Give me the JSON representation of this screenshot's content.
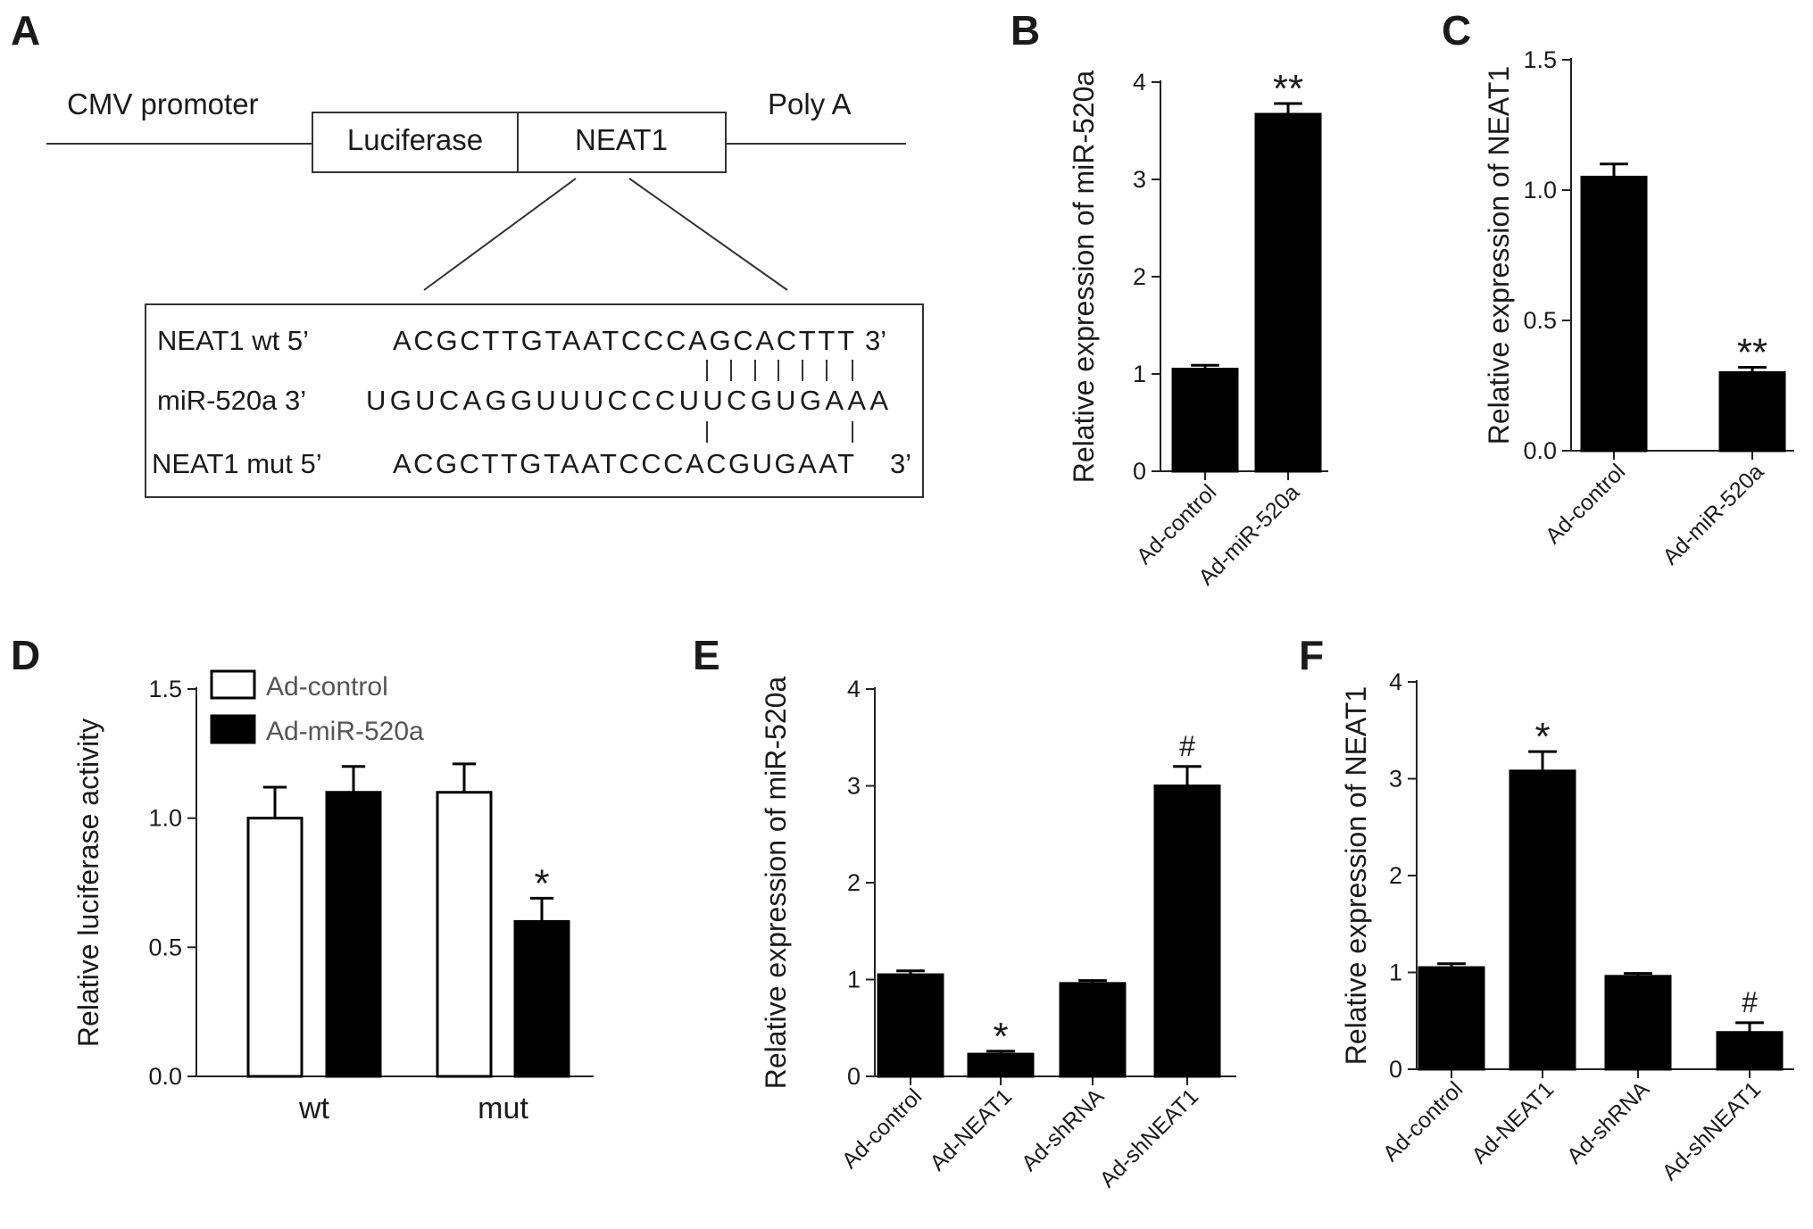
{
  "diagram": {
    "panel_label": "A",
    "cmv_promoter": "CMV promoter",
    "poly_a": "Poly A",
    "box_luciferase": "Luciferase",
    "box_neat1": "NEAT1",
    "seq_rows": [
      {
        "label": "NEAT1  wt  5’",
        "seq": "ACGCTTGTAATCCCAGCACTTT",
        "end": "3’"
      },
      {
        "label": "miR-520a 3’",
        "seq": "UGUCAGGUUUCCCUUCGUGAAA",
        "end": ""
      },
      {
        "label": "NEAT1 mut  5’",
        "seq": "ACGCTTGTAATCCCACGUGAAT",
        "end": "3’"
      }
    ]
  },
  "chart_data": [
    {
      "panel": "B",
      "type": "bar",
      "ylabel": "Relative expression of miR-520a",
      "ylim": [
        0,
        4
      ],
      "yticks": [
        "0",
        "1",
        "2",
        "3",
        "4"
      ],
      "categories": [
        "Ad-control",
        "Ad-miR-520a"
      ],
      "values": [
        1.05,
        3.67
      ],
      "errors": [
        0.04,
        0.11
      ],
      "annotations": [
        "",
        "**"
      ]
    },
    {
      "panel": "C",
      "type": "bar",
      "ylabel": "Relative expression of NEAT1",
      "ylim": [
        0,
        1.5
      ],
      "yticks": [
        "0.0",
        "0.5",
        "1.0",
        "1.5"
      ],
      "categories": [
        "Ad-control",
        "Ad-miR-520a"
      ],
      "values": [
        1.05,
        0.3
      ],
      "errors": [
        0.05,
        0.02
      ],
      "annotations": [
        "",
        "**"
      ]
    },
    {
      "panel": "D",
      "type": "bar",
      "ylabel": "Relative luciferase activity",
      "ylim": [
        0,
        1.5
      ],
      "yticks": [
        "0.0",
        "0.5",
        "1.0",
        "1.5"
      ],
      "categories": [
        "wt",
        "mut"
      ],
      "series": [
        {
          "name": "Ad-control",
          "values": [
            1.0,
            1.1
          ],
          "errors": [
            0.12,
            0.11
          ],
          "color": "#ffffff"
        },
        {
          "name": "Ad-miR-520a",
          "values": [
            1.1,
            0.6
          ],
          "errors": [
            0.1,
            0.09
          ],
          "color": "#000000"
        }
      ],
      "annotations": [
        "",
        "",
        "",
        "*"
      ],
      "legend": "top-left"
    },
    {
      "panel": "E",
      "type": "bar",
      "ylabel": "Relative expression of miR-520a",
      "ylim": [
        0,
        4
      ],
      "yticks": [
        "0",
        "1",
        "2",
        "3",
        "4"
      ],
      "categories": [
        "Ad-control",
        "Ad-NEAT1",
        "Ad-shRNA",
        "Ad-shNEAT1"
      ],
      "values": [
        1.05,
        0.23,
        0.96,
        3.0
      ],
      "errors": [
        0.04,
        0.03,
        0.03,
        0.2
      ],
      "annotations": [
        "",
        "*",
        "",
        "#"
      ]
    },
    {
      "panel": "F",
      "type": "bar",
      "ylabel": "Relative expression of NEAT1",
      "ylim": [
        0,
        4
      ],
      "yticks": [
        "0",
        "1",
        "2",
        "3",
        "4"
      ],
      "categories": [
        "Ad-control",
        "Ad-NEAT1",
        "Ad-shRNA",
        "Ad-shNEAT1"
      ],
      "values": [
        1.05,
        3.08,
        0.96,
        0.38
      ],
      "errors": [
        0.04,
        0.2,
        0.03,
        0.1
      ],
      "annotations": [
        "",
        "*",
        "",
        "#"
      ]
    }
  ]
}
